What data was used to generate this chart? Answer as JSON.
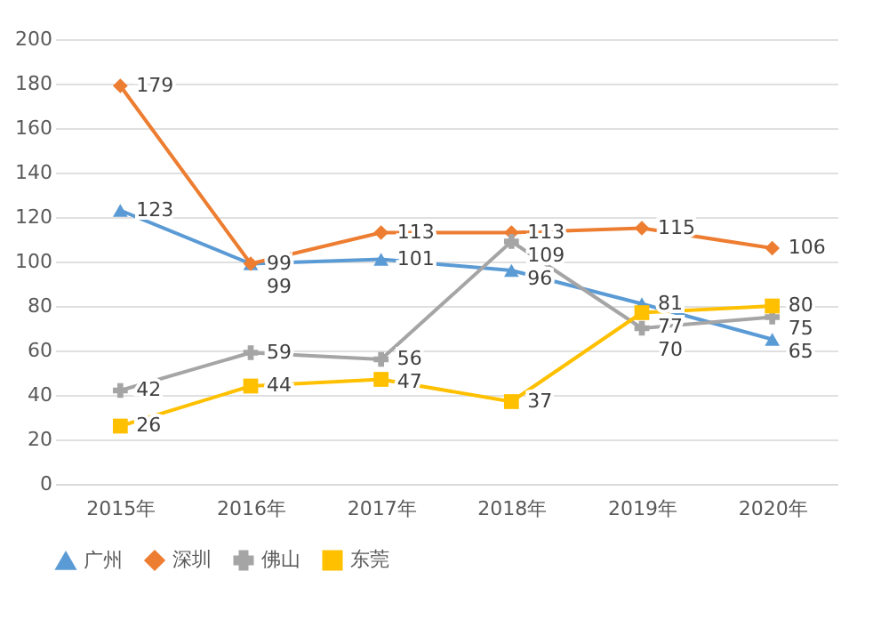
{
  "chart_data": {
    "type": "line",
    "categories": [
      "2015年",
      "2016年",
      "2017年",
      "2018年",
      "2019年",
      "2020年"
    ],
    "series": [
      {
        "name": "广州",
        "color": "#5b9bd5",
        "marker": "triangle",
        "values": [
          123,
          99,
          101,
          96,
          81,
          65
        ]
      },
      {
        "name": "深圳",
        "color": "#ed7d31",
        "marker": "diamond",
        "values": [
          179,
          99,
          113,
          113,
          115,
          106
        ]
      },
      {
        "name": "佛山",
        "color": "#a5a5a5",
        "marker": "cross",
        "values": [
          42,
          59,
          56,
          109,
          70,
          75
        ]
      },
      {
        "name": "东莞",
        "color": "#ffc000",
        "marker": "square",
        "values": [
          26,
          44,
          47,
          37,
          77,
          80
        ]
      }
    ],
    "ylim": [
      0,
      200
    ],
    "yticks": [
      0,
      20,
      40,
      60,
      80,
      100,
      120,
      140,
      160,
      180,
      200
    ],
    "grid": "y",
    "legend": "bottom",
    "data_labels": true
  }
}
